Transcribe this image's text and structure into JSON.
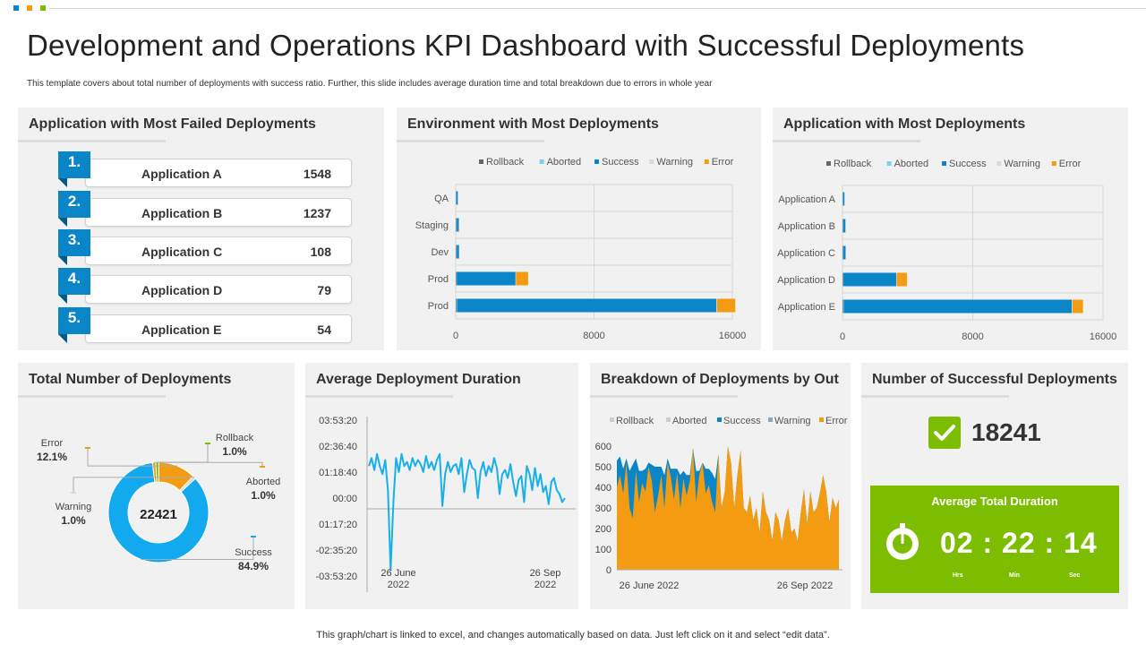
{
  "title": "Development and Operations KPI Dashboard with Successful Deployments",
  "subtitle": "This template covers about total number of deployments with success ratio. Further, this slide includes average duration time and total breakdown due to errors in whole year",
  "footer": "This graph/chart is linked to excel, and changes automatically based on data. Just left click on it and select “edit data”.",
  "colors": {
    "success": "#0a86c8",
    "error": "#f39c12",
    "rollback": "#666666",
    "aborted": "#7fcfef",
    "warning": "#d9d9d9",
    "green": "#7dbd00",
    "donut": "#12a9ee"
  },
  "panels": {
    "failed": {
      "title": "Application  with Most Failed Deployments"
    },
    "env": {
      "title": "Environment with Most Deployments"
    },
    "app": {
      "title": "Application  with Most Deployments"
    },
    "total": {
      "title": "Total Number of Deployments"
    },
    "avg": {
      "title": "Average Deployment Duration"
    },
    "breakdown": {
      "title": "Breakdown of Deployments by Out"
    },
    "success": {
      "title": "Number of Successful Deployments"
    }
  },
  "failed_list": [
    {
      "rank": "1.",
      "name": "Application  A",
      "value": "1548"
    },
    {
      "rank": "2.",
      "name": "Application  B",
      "value": "1237"
    },
    {
      "rank": "3.",
      "name": "Application  C",
      "value": "108"
    },
    {
      "rank": "4.",
      "name": "Application  D",
      "value": "79"
    },
    {
      "rank": "5.",
      "name": "Application  E",
      "value": "54"
    }
  ],
  "successful": {
    "value": "18241"
  },
  "avg_total": {
    "label": "Average Total Duration",
    "time": "02 : 22 : 14",
    "units": {
      "hrs": "Hrs",
      "min": "Min",
      "sec": "Sec"
    }
  },
  "chart_data": [
    {
      "id": "env",
      "type": "bar",
      "orientation": "horizontal",
      "stacked": true,
      "title": "Environment with Most Deployments",
      "legend": [
        "Rollback",
        "Aborted",
        "Success",
        "Warning",
        "Error"
      ],
      "categories": [
        "QA",
        "Staging",
        "Dev",
        "Prod",
        "Prod"
      ],
      "series": [
        {
          "name": "Rollback",
          "values": [
            20,
            30,
            30,
            30,
            40
          ]
        },
        {
          "name": "Aborted",
          "values": [
            20,
            30,
            30,
            30,
            40
          ]
        },
        {
          "name": "Success",
          "values": [
            80,
            120,
            130,
            3400,
            15000
          ]
        },
        {
          "name": "Warning",
          "values": [
            0,
            0,
            0,
            30,
            40
          ]
        },
        {
          "name": "Error",
          "values": [
            0,
            0,
            0,
            700,
            1050
          ]
        }
      ],
      "xlim": [
        0,
        16000
      ],
      "xticks": [
        "0",
        "8000",
        "16000"
      ]
    },
    {
      "id": "app",
      "type": "bar",
      "orientation": "horizontal",
      "stacked": true,
      "title": "Application  with Most Deployments",
      "legend": [
        "Rollback",
        "Aborted",
        "Success",
        "Warning",
        "Error"
      ],
      "categories": [
        "Application A",
        "Application B",
        "Application C",
        "Application D",
        "Application E"
      ],
      "series": [
        {
          "name": "Rollback",
          "values": [
            20,
            30,
            30,
            30,
            40
          ]
        },
        {
          "name": "Aborted",
          "values": [
            20,
            30,
            30,
            30,
            40
          ]
        },
        {
          "name": "Success",
          "values": [
            80,
            120,
            130,
            3250,
            14000
          ]
        },
        {
          "name": "Warning",
          "values": [
            0,
            0,
            0,
            30,
            40
          ]
        },
        {
          "name": "Error",
          "values": [
            0,
            0,
            0,
            620,
            650
          ]
        }
      ],
      "xlim": [
        0,
        16000
      ],
      "xticks": [
        "0",
        "8000",
        "16000"
      ]
    },
    {
      "id": "total",
      "type": "pie",
      "donut": true,
      "title": "Total Number of Deployments",
      "center_label": "22421",
      "slices": [
        {
          "name": "Success",
          "pct": "84.9%",
          "value": 84.9
        },
        {
          "name": "Warning",
          "pct": "1.0%",
          "value": 1.0
        },
        {
          "name": "Error",
          "pct": "12.1%",
          "value": 12.1
        },
        {
          "name": "Rollback",
          "pct": "1.0%",
          "value": 1.0
        },
        {
          "name": "Aborted",
          "pct": "1.0%",
          "value": 1.0
        }
      ]
    },
    {
      "id": "avg",
      "type": "line",
      "title": "Average Deployment Duration",
      "yticks": [
        "03:53:20",
        "02:36:40",
        "01:18:40",
        "00:00",
        "01:17:20",
        "-02:35:20",
        "-03:53:20"
      ],
      "ylim": [
        -3.89,
        3.89
      ],
      "xticks": [
        {
          "line1": "26 June",
          "line2": "2022"
        },
        {
          "line1": "26 Sep",
          "line2": "2022"
        }
      ],
      "values": [
        1.6,
        2.0,
        1.4,
        2.2,
        1.6,
        1.2,
        1.9,
        0.4,
        -3.6,
        -0.2,
        2.0,
        1.3,
        2.2,
        1.6,
        1.8,
        1.4,
        2.0,
        1.6,
        1.9,
        1.7,
        1.3,
        2.1,
        1.5,
        1.8,
        1.4,
        1.9,
        2.2,
        -0.4,
        1.2,
        1.8,
        1.3,
        1.6,
        1.7,
        1.2,
        2.0,
        0.3,
        1.2,
        1.9,
        1.5,
        1.4,
        0.0,
        1.3,
        1.8,
        1.1,
        1.6,
        1.3,
        2.0,
        1.5,
        0.2,
        1.2,
        1.4,
        1.0,
        1.7,
        0.8,
        0.1,
        0.9,
        1.1,
        -0.2,
        1.6,
        1.2,
        0.4,
        1.5,
        0.6,
        1.2,
        0.3,
        0.6,
        -0.3,
        0.8,
        1.0,
        0.4,
        0.2,
        -0.2,
        0.0
      ]
    },
    {
      "id": "breakdown",
      "type": "area",
      "stacked": true,
      "title": "Breakdown of Deployments by Out",
      "legend": [
        "Rollback",
        "Aborted",
        "Success",
        "Warning",
        "Error"
      ],
      "ylim": [
        0,
        600
      ],
      "yticks": [
        "0",
        "100",
        "200",
        "300",
        "400",
        "500",
        "600"
      ],
      "xticks": [
        "26 June 2022",
        "26 Sep 2022"
      ],
      "series": [
        {
          "name": "Error",
          "values": [
            400,
            460,
            370,
            520,
            300,
            250,
            480,
            330,
            420,
            380,
            500,
            430,
            280,
            360,
            460,
            300,
            520,
            450,
            340,
            470,
            300,
            440,
            360,
            430,
            590,
            330,
            460,
            520,
            370,
            410,
            330,
            280,
            560,
            300,
            380,
            600,
            520,
            300,
            460,
            580,
            300,
            280,
            360,
            240,
            300,
            180,
            380,
            280,
            240,
            140,
            280,
            240,
            140,
            240,
            300,
            180,
            200,
            140,
            280,
            390,
            220,
            380,
            280,
            300,
            370,
            460,
            380,
            230,
            350,
            300,
            340
          ]
        },
        {
          "name": "Success",
          "values": [
            130,
            90,
            120,
            20,
            180,
            260,
            60,
            150,
            60,
            110,
            20,
            80,
            220,
            140,
            40,
            160,
            20,
            40,
            150,
            20,
            160,
            40,
            100,
            30,
            0,
            150,
            20,
            0,
            120,
            80,
            140,
            160,
            0,
            0,
            0,
            0,
            0,
            0,
            0,
            0,
            0,
            0,
            0,
            0,
            0,
            0,
            0,
            0,
            0,
            0,
            0,
            0,
            0,
            0,
            0,
            0,
            0,
            0,
            0,
            0,
            0,
            0,
            0,
            0,
            0,
            0,
            0,
            0,
            0,
            0,
            0
          ]
        }
      ]
    }
  ]
}
